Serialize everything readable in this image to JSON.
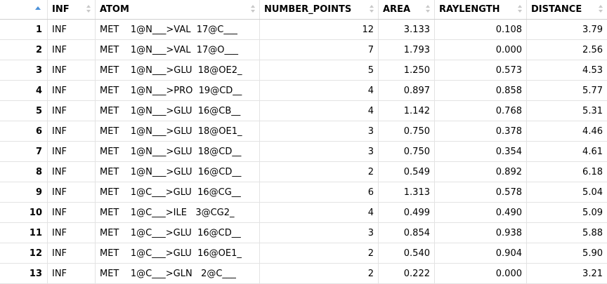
{
  "columns": [
    "",
    "INF",
    "ATOM",
    "NUMBER_POINTS",
    "AREA",
    "RAYLENGTH",
    "DISTANCE"
  ],
  "rows": [
    [
      "1",
      "INF",
      "MET    1@N___>VAL  17@C___",
      "12",
      "3.133",
      "0.108",
      "3.79"
    ],
    [
      "2",
      "INF",
      "MET    1@N___>VAL  17@O___",
      "7",
      "1.793",
      "0.000",
      "2.56"
    ],
    [
      "3",
      "INF",
      "MET    1@N___>GLU  18@OE2_",
      "5",
      "1.250",
      "0.573",
      "4.53"
    ],
    [
      "4",
      "INF",
      "MET    1@N___>PRO  19@CD__",
      "4",
      "0.897",
      "0.858",
      "5.77"
    ],
    [
      "5",
      "INF",
      "MET    1@N___>GLU  16@CB__",
      "4",
      "1.142",
      "0.768",
      "5.31"
    ],
    [
      "6",
      "INF",
      "MET    1@N___>GLU  18@OE1_",
      "3",
      "0.750",
      "0.378",
      "4.46"
    ],
    [
      "7",
      "INF",
      "MET    1@N___>GLU  18@CD__",
      "3",
      "0.750",
      "0.354",
      "4.61"
    ],
    [
      "8",
      "INF",
      "MET    1@N___>GLU  16@CD__",
      "2",
      "0.549",
      "0.892",
      "6.18"
    ],
    [
      "9",
      "INF",
      "MET    1@C___>GLU  16@CG__",
      "6",
      "1.313",
      "0.578",
      "5.04"
    ],
    [
      "10",
      "INF",
      "MET    1@C___>ILE   3@CG2_",
      "4",
      "0.499",
      "0.490",
      "5.09"
    ],
    [
      "11",
      "INF",
      "MET    1@C___>GLU  16@CD__",
      "3",
      "0.854",
      "0.938",
      "5.88"
    ],
    [
      "12",
      "INF",
      "MET    1@C___>GLU  16@OE1_",
      "2",
      "0.540",
      "0.904",
      "5.90"
    ],
    [
      "13",
      "INF",
      "MET    1@C___>GLN   2@C___",
      "2",
      "0.222",
      "0.000",
      "3.21"
    ]
  ]
}
